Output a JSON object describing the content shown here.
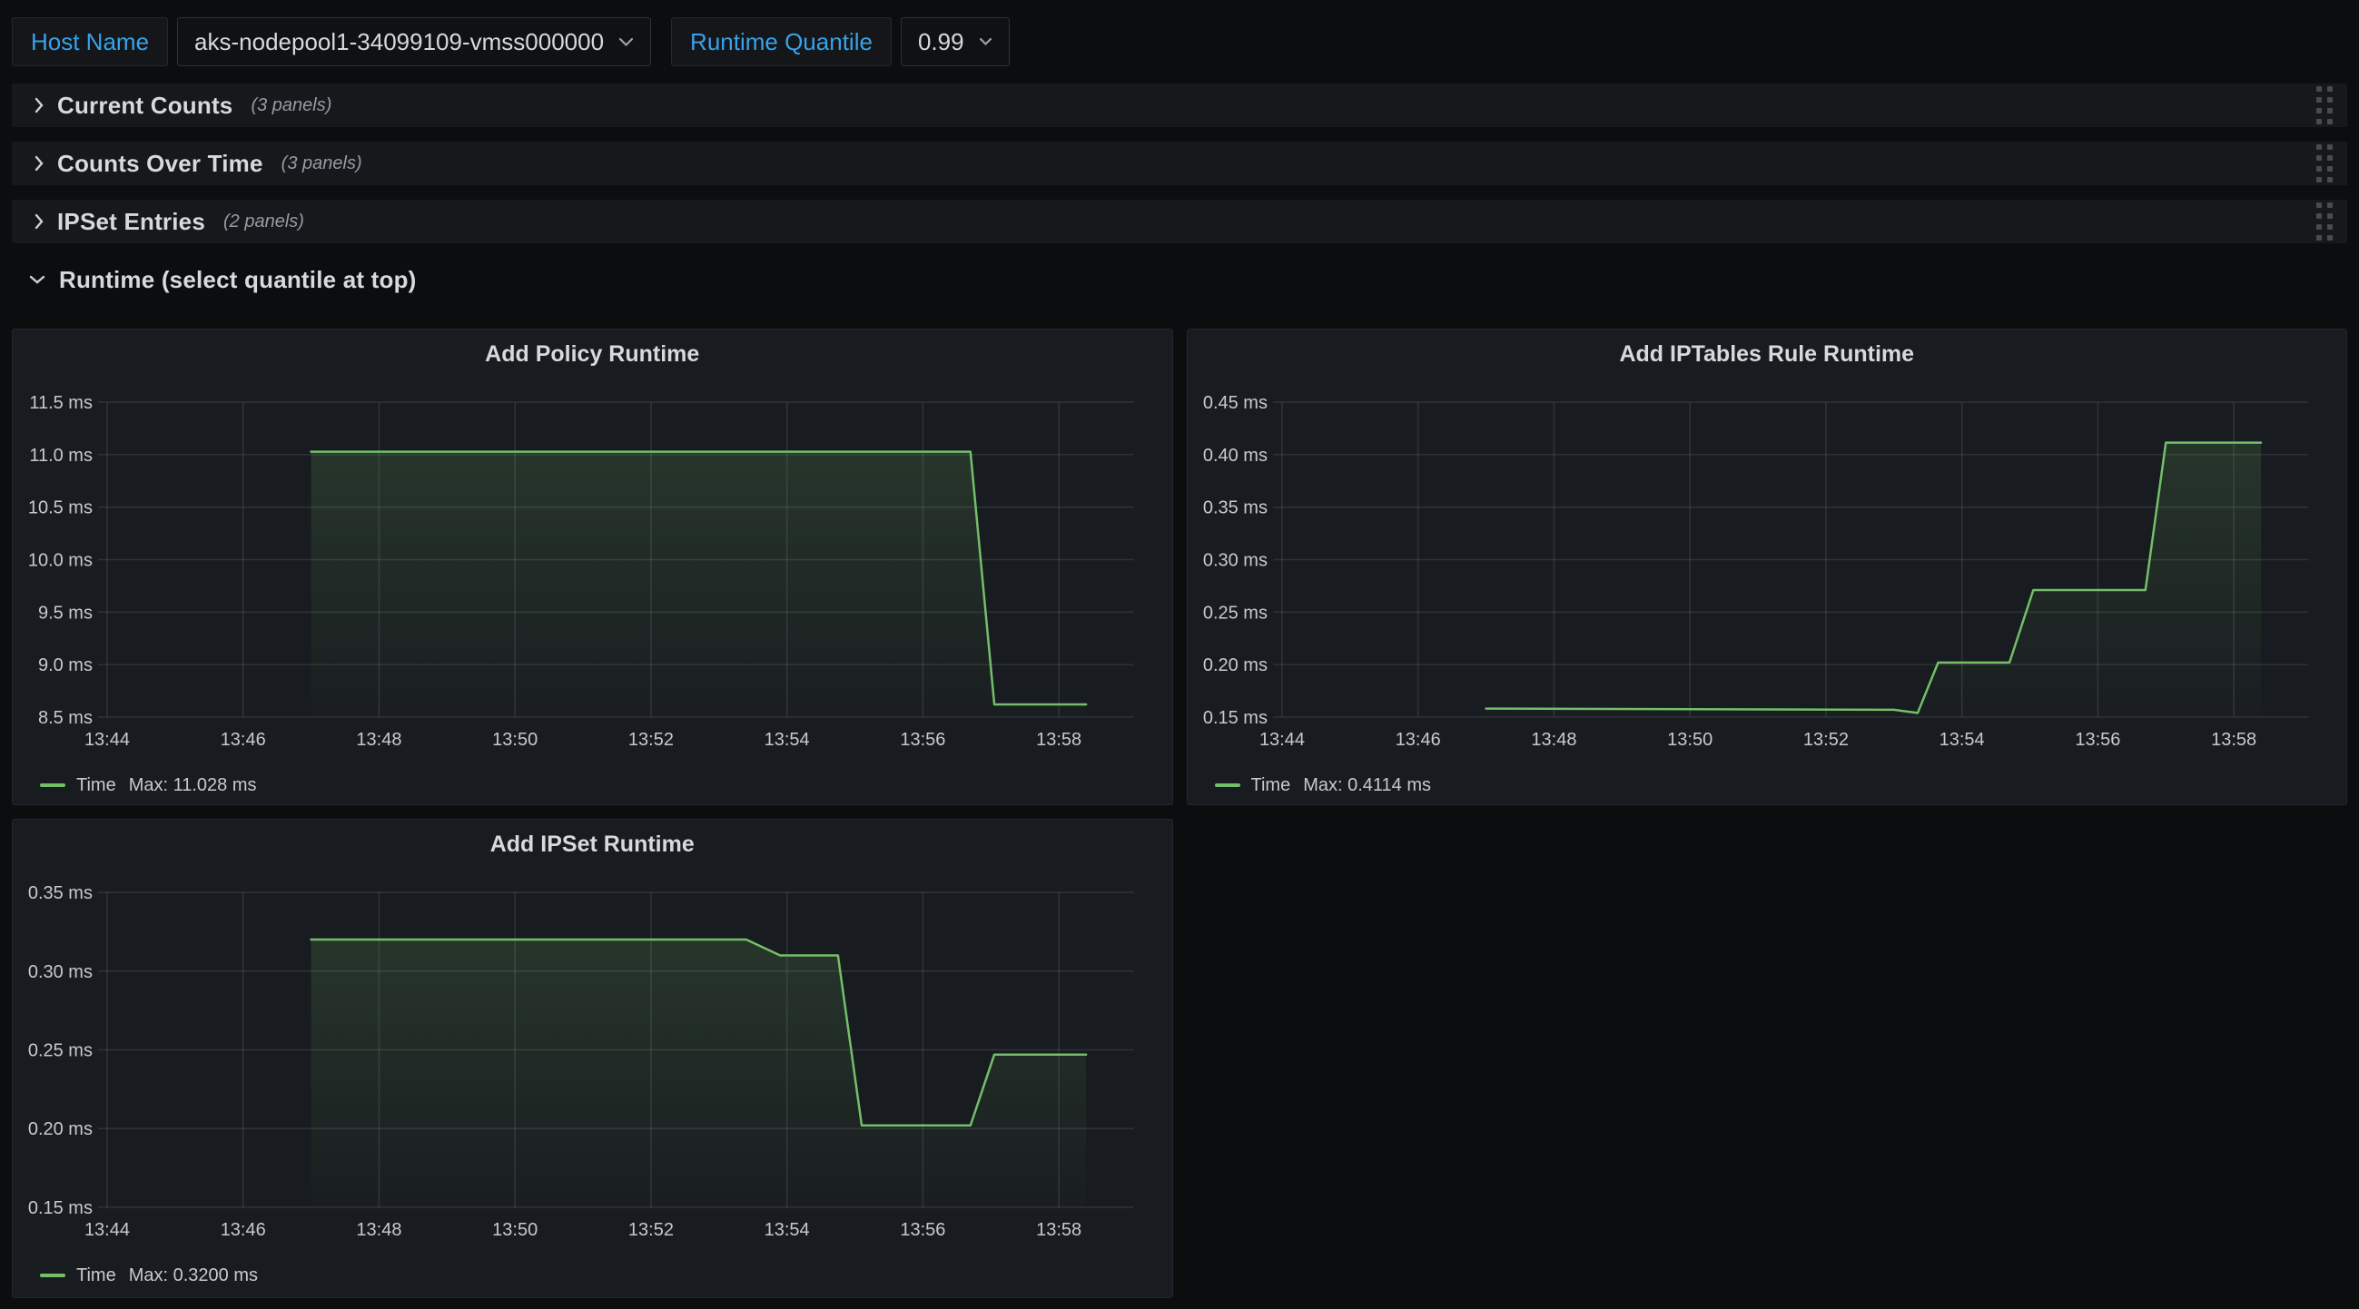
{
  "topbar": {
    "host_name_label": "Host Name",
    "host_name_value": "aks-nodepool1-34099109-vmss000000",
    "quantile_label": "Runtime Quantile",
    "quantile_value": "0.99"
  },
  "rows": [
    {
      "title": "Current Counts",
      "count": "(3 panels)",
      "collapsed": true
    },
    {
      "title": "Counts Over Time",
      "count": "(3 panels)",
      "collapsed": true
    },
    {
      "title": "IPSet Entries",
      "count": "(2 panels)",
      "collapsed": true
    },
    {
      "title": "Runtime (select quantile at top)",
      "count": "",
      "collapsed": false
    }
  ],
  "colors": {
    "page_bg": "#0c0d0f",
    "panel_bg": "#181b1f",
    "row_bg": "#17181b",
    "accent_blue": "#38a2eb",
    "series_green": "#73bf69",
    "grid": "rgba(204,204,220,0.13)",
    "tick_text": "#c8c9ce"
  },
  "chart_data": [
    {
      "type": "line",
      "title": "Add Policy Runtime",
      "legend": {
        "series": "Time",
        "max": "Max: 11.028 ms"
      },
      "color": "#73bf69",
      "ylim": [
        8.5,
        11.5
      ],
      "xlim": [
        0,
        15.1
      ],
      "grid": true,
      "legend_position": "bottom-left",
      "y_ticks": [
        {
          "v": 8.5,
          "label": "8.5 ms"
        },
        {
          "v": 9.0,
          "label": "9.0 ms"
        },
        {
          "v": 9.5,
          "label": "9.5 ms"
        },
        {
          "v": 10.0,
          "label": "10.0 ms"
        },
        {
          "v": 10.5,
          "label": "10.5 ms"
        },
        {
          "v": 11.0,
          "label": "11.0 ms"
        },
        {
          "v": 11.5,
          "label": "11.5 ms"
        }
      ],
      "x_ticks": [
        {
          "v": 0,
          "label": "13:44"
        },
        {
          "v": 2,
          "label": "13:46"
        },
        {
          "v": 4,
          "label": "13:48"
        },
        {
          "v": 6,
          "label": "13:50"
        },
        {
          "v": 8,
          "label": "13:52"
        },
        {
          "v": 10,
          "label": "13:54"
        },
        {
          "v": 12,
          "label": "13:56"
        },
        {
          "v": 14,
          "label": "13:58"
        }
      ],
      "points_x_unit": "minutes after 13:44",
      "points": [
        [
          3.0,
          11.028
        ],
        [
          12.7,
          11.028
        ],
        [
          13.05,
          8.62
        ],
        [
          14.4,
          8.62
        ]
      ]
    },
    {
      "type": "line",
      "title": "Add IPTables Rule Runtime",
      "legend": {
        "series": "Time",
        "max": "Max: 0.4114 ms"
      },
      "color": "#73bf69",
      "ylim": [
        0.15,
        0.45
      ],
      "xlim": [
        0,
        15.1
      ],
      "grid": true,
      "legend_position": "bottom-left",
      "y_ticks": [
        {
          "v": 0.15,
          "label": "0.15 ms"
        },
        {
          "v": 0.2,
          "label": "0.20 ms"
        },
        {
          "v": 0.25,
          "label": "0.25 ms"
        },
        {
          "v": 0.3,
          "label": "0.30 ms"
        },
        {
          "v": 0.35,
          "label": "0.35 ms"
        },
        {
          "v": 0.4,
          "label": "0.40 ms"
        },
        {
          "v": 0.45,
          "label": "0.45 ms"
        }
      ],
      "x_ticks": [
        {
          "v": 0,
          "label": "13:44"
        },
        {
          "v": 2,
          "label": "13:46"
        },
        {
          "v": 4,
          "label": "13:48"
        },
        {
          "v": 6,
          "label": "13:50"
        },
        {
          "v": 8,
          "label": "13:52"
        },
        {
          "v": 10,
          "label": "13:54"
        },
        {
          "v": 12,
          "label": "13:56"
        },
        {
          "v": 14,
          "label": "13:58"
        }
      ],
      "points_x_unit": "minutes after 13:44",
      "points": [
        [
          3.0,
          0.158
        ],
        [
          9.0,
          0.157
        ],
        [
          9.35,
          0.154
        ],
        [
          9.65,
          0.202
        ],
        [
          10.7,
          0.202
        ],
        [
          11.05,
          0.271
        ],
        [
          12.7,
          0.271
        ],
        [
          13.0,
          0.4114
        ],
        [
          14.4,
          0.4114
        ]
      ]
    },
    {
      "type": "line",
      "title": "Add IPSet Runtime",
      "legend": {
        "series": "Time",
        "max": "Max: 0.3200 ms"
      },
      "color": "#73bf69",
      "ylim": [
        0.15,
        0.35
      ],
      "xlim": [
        0,
        15.1
      ],
      "grid": true,
      "legend_position": "bottom-left",
      "y_ticks": [
        {
          "v": 0.15,
          "label": "0.15 ms"
        },
        {
          "v": 0.2,
          "label": "0.20 ms"
        },
        {
          "v": 0.25,
          "label": "0.25 ms"
        },
        {
          "v": 0.3,
          "label": "0.30 ms"
        },
        {
          "v": 0.35,
          "label": "0.35 ms"
        }
      ],
      "x_ticks": [
        {
          "v": 0,
          "label": "13:44"
        },
        {
          "v": 2,
          "label": "13:46"
        },
        {
          "v": 4,
          "label": "13:48"
        },
        {
          "v": 6,
          "label": "13:50"
        },
        {
          "v": 8,
          "label": "13:52"
        },
        {
          "v": 10,
          "label": "13:54"
        },
        {
          "v": 12,
          "label": "13:56"
        },
        {
          "v": 14,
          "label": "13:58"
        }
      ],
      "points_x_unit": "minutes after 13:44",
      "points": [
        [
          3.0,
          0.32
        ],
        [
          9.4,
          0.32
        ],
        [
          9.9,
          0.31
        ],
        [
          10.75,
          0.31
        ],
        [
          11.1,
          0.202
        ],
        [
          12.7,
          0.202
        ],
        [
          13.05,
          0.247
        ],
        [
          14.4,
          0.247
        ]
      ]
    }
  ]
}
